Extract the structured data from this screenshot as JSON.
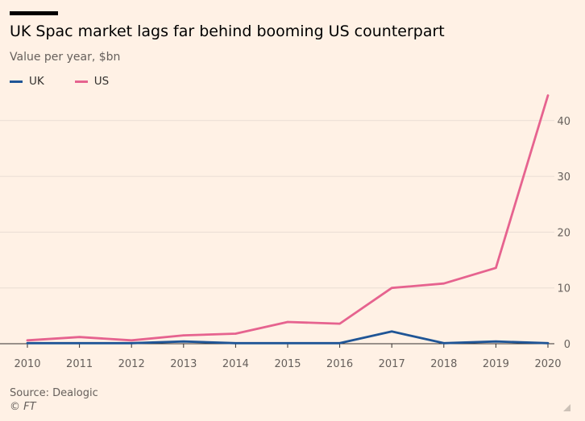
{
  "header": {
    "title": "UK Spac market lags far behind booming US counterpart",
    "subtitle": "Value per year, $bn"
  },
  "footer": {
    "source": "Source: Dealogic",
    "copyright": "© FT"
  },
  "colors": {
    "background": "#fff1e5",
    "uk": "#1f5596",
    "us": "#e6638f",
    "grid": "#e9ddd3",
    "axis": "#33302e"
  },
  "chart_data": {
    "type": "line",
    "title": "UK Spac market lags far behind booming US counterpart",
    "subtitle": "Value per year, $bn",
    "xlabel": "",
    "ylabel": "",
    "x": [
      "2010",
      "2011",
      "2012",
      "2013",
      "2014",
      "2015",
      "2016",
      "2017",
      "2018",
      "2019",
      "2020"
    ],
    "ylim": [
      0,
      46
    ],
    "yticks": [
      0,
      10,
      20,
      30,
      40
    ],
    "grid": true,
    "legend_position": "top-left",
    "y_axis_side": "right",
    "series": [
      {
        "name": "UK",
        "color": "#1f5596",
        "values": [
          0.1,
          0.1,
          0.1,
          0.4,
          0.1,
          0.1,
          0.1,
          2.2,
          0.1,
          0.4,
          0.1
        ]
      },
      {
        "name": "US",
        "color": "#e6638f",
        "values": [
          0.6,
          1.2,
          0.6,
          1.5,
          1.8,
          3.9,
          3.6,
          10.0,
          10.8,
          13.6,
          44.5
        ]
      }
    ]
  }
}
